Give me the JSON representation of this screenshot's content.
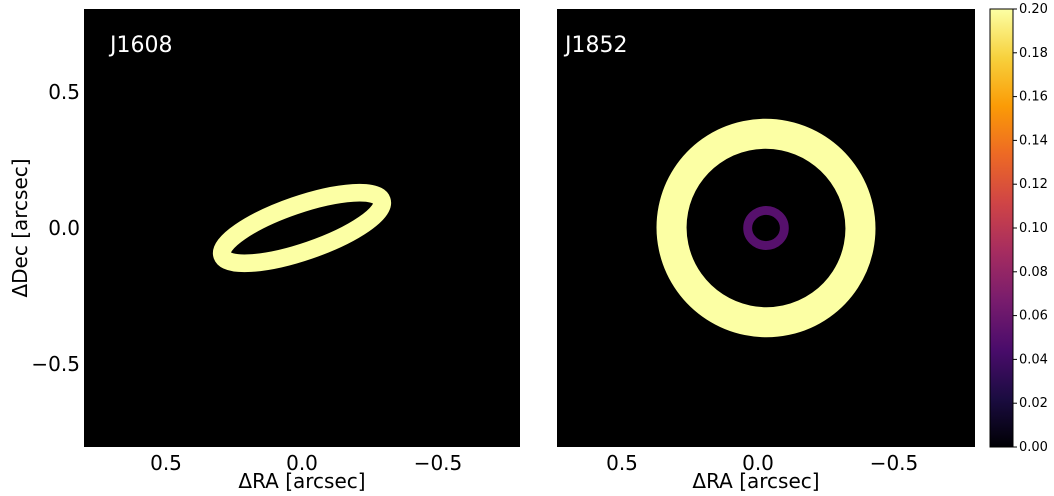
{
  "chart_data": [
    {
      "type": "heatmap",
      "panel": "J1608",
      "xlabel": "ΔRA [arcsec]",
      "ylabel": "ΔDec [arcsec]",
      "xlim": [
        0.8,
        -0.8
      ],
      "ylim": [
        -0.8,
        0.8
      ],
      "xticks": [
        0.5,
        0.0,
        -0.5
      ],
      "xtick_labels": [
        "0.5",
        "0.0",
        "−0.5"
      ],
      "yticks": [
        0.5,
        0.0,
        -0.5
      ],
      "ytick_labels": [
        "0.5",
        "0.0",
        "−0.5"
      ],
      "rings": [
        {
          "center": [
            0.0,
            0.0
          ],
          "radius": 0.31,
          "width": 0.065,
          "inclination_deg": 74,
          "pa_deg": 71,
          "intensity": 0.2
        }
      ]
    },
    {
      "type": "heatmap",
      "panel": "J1852",
      "xlabel": "ΔRA [arcsec]",
      "ylabel": "",
      "xlim": [
        0.8,
        -0.8
      ],
      "ylim": [
        -0.8,
        0.8
      ],
      "xticks": [
        0.5,
        0.0,
        -0.5
      ],
      "xtick_labels": [
        "0.5",
        "0.0",
        "−0.5"
      ],
      "yticks": [],
      "ytick_labels": [],
      "rings": [
        {
          "center": [
            0.0,
            0.0
          ],
          "radius": 0.36,
          "width": 0.115,
          "axis_ratio": 0.96,
          "pa_deg": 33,
          "intensity": 0.2
        },
        {
          "center": [
            0.0,
            0.0
          ],
          "radius": 0.067,
          "width": 0.034,
          "axis_ratio": 1.0,
          "pa_deg": 0,
          "intensity": 0.05
        }
      ]
    }
  ],
  "colorbar": {
    "colormap": "inferno",
    "vmin": 0.0,
    "vmax": 0.2,
    "ticks": [
      0.0,
      0.02,
      0.04,
      0.06,
      0.08,
      0.1,
      0.12,
      0.14,
      0.16,
      0.18,
      0.2
    ],
    "tick_labels": [
      "0.00",
      "0.02",
      "0.04",
      "0.06",
      "0.08",
      "0.10",
      "0.12",
      "0.14",
      "0.16",
      "0.18",
      "0.20"
    ],
    "colors": [
      "#000004",
      "#1b0c41",
      "#4a0c6b",
      "#781c6d",
      "#a52c60",
      "#cf4446",
      "#ed6925",
      "#fb9b06",
      "#f7d13d",
      "#fcffa4"
    ]
  }
}
